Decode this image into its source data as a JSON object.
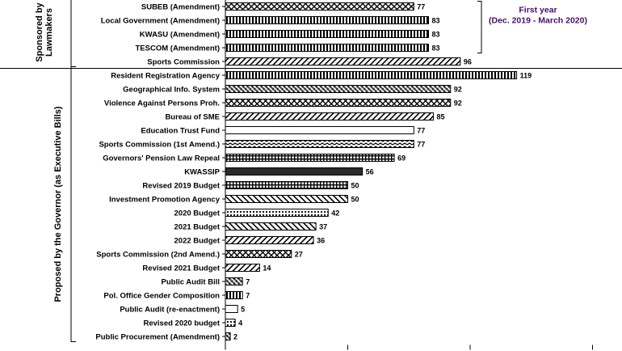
{
  "chart_data": {
    "type": "bar",
    "orientation": "horizontal",
    "categories": [
      "SUBEB (Amendment)",
      "Local Government (Amendment)",
      "KWASU (Amendment)",
      "TESCOM (Amendment)",
      "Sports Commission",
      "Resident Registration Agency",
      "Geographical Info. System",
      "Violence Against Persons Proh.",
      "Bureau of SME",
      "Education Trust Fund",
      "Sports Commission (1st Amend.)",
      "Governors' Pension Law Repeal",
      "KWASSIP",
      "Revised 2019 Budget",
      "Investment Promotion Agency",
      "2020 Budget",
      "2021 Budget",
      "2022 Budget",
      "Sports Commission (2nd Amend.)",
      "Revised 2021 Budget",
      "Public Audit Bill",
      "Pol. Office Gender Composition",
      "Public Audit (re-enactment)",
      "Revised 2020 budget",
      "Public Procurement (Amendment)"
    ],
    "values": [
      77,
      83,
      83,
      83,
      96,
      119,
      92,
      92,
      85,
      77,
      77,
      69,
      56,
      50,
      50,
      42,
      37,
      36,
      27,
      14,
      7,
      7,
      5,
      4,
      2
    ],
    "patterns": [
      "cross",
      "vstripe",
      "vstripe",
      "vstripe",
      "diag",
      "vstripe",
      "dense",
      "cross",
      "diag",
      "none",
      "zigzag",
      "grid",
      "solid",
      "grid",
      "diagb",
      "dots",
      "diagb",
      "diag",
      "cross",
      "diag",
      "dense",
      "vstripe",
      "none",
      "dots",
      "dense"
    ],
    "groups": [
      {
        "label": "Sponsored by Lawmakers",
        "start": 0,
        "end": 4
      },
      {
        "label": "Proposed by the Governor (as Executive Bills)",
        "start": 5,
        "end": 24
      }
    ],
    "annotation": {
      "lines": [
        "First year",
        "(Dec. 2019 - March 2020)"
      ],
      "spans": [
        0,
        3
      ],
      "color": "#4b0e6b"
    },
    "xlim": [
      0,
      150
    ],
    "xtick_step": 50,
    "grid": false,
    "legend": "none",
    "title": "",
    "xlabel": "",
    "ylabel": ""
  }
}
